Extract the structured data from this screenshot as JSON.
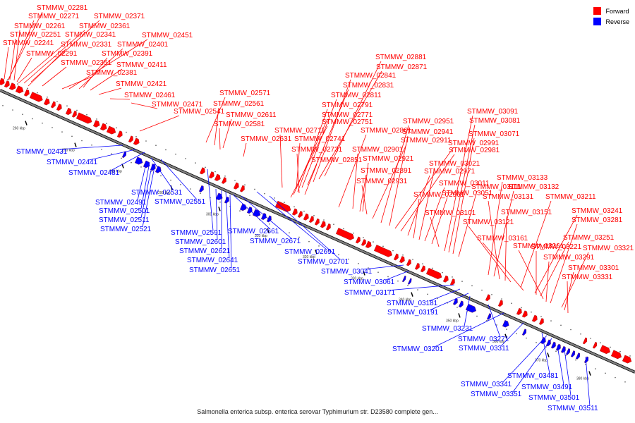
{
  "legend": [
    {
      "label": "Forward",
      "color": "#ff0000"
    },
    {
      "label": "Reverse",
      "color": "#0000ff"
    }
  ],
  "caption": "Salmonella enterica subsp. enterica serovar Typhimurium str. D23580 complete gen...",
  "colors": {
    "forward": "#ff0000",
    "reverse": "#0000ff",
    "backbone": "#808080"
  },
  "ticks": [
    "260 kbp",
    "270 kbp",
    "280 kbp",
    "290 kbp",
    "300 kbp",
    "310 kbp",
    "320 kbp",
    "330 kbp",
    "340 kbp",
    "350 kbp",
    "360 kbp",
    "370 kbp",
    "380 kbp"
  ],
  "forward_labels": [
    "STMMW_02281",
    "STMMW_02271",
    "STMMW_02371",
    "STMMW_02261",
    "STMMW_02361",
    "STMMW_02251",
    "STMMW_02341",
    "STMMW_02451",
    "STMMW_02241",
    "STMMW_02331",
    "STMMW_02401",
    "STMMW_02291",
    "STMMW_02391",
    "STMMW_02351",
    "STMMW_02411",
    "STMMW_02381",
    "STMMW_02421",
    "STMMW_02461",
    "STMMW_02471",
    "STMMW_02571",
    "STMMW_02541",
    "STMMW_02561",
    "STMMW_02611",
    "STMMW_02581",
    "STMMW_02631",
    "STMMW_02881",
    "STMMW_02871",
    "STMMW_02841",
    "STMMW_02831",
    "STMMW_02811",
    "STMMW_02791",
    "STMMW_02771",
    "STMMW_02751",
    "STMMW_02711",
    "STMMW_02741",
    "STMMW_02731",
    "STMMW_02851",
    "STMMW_02861",
    "STMMW_02901",
    "STMMW_02891",
    "STMMW_02931",
    "STMMW_02921",
    "STMMW_02911",
    "STMMW_02951",
    "STMMW_02941",
    "STMMW_02991",
    "STMMW_02981",
    "STMMW_02971",
    "STMMW_02961",
    "STMMW_03021",
    "STMMW_03011",
    "STMMW_03051",
    "STMMW_03101",
    "STMMW_03091",
    "STMMW_03081",
    "STMMW_03071",
    "STMMW_03111",
    "STMMW_03133",
    "STMMW_03132",
    "STMMW_03131",
    "STMMW_03151",
    "STMMW_03121",
    "STMMW_03211",
    "STMMW_03161",
    "STMMW_03241",
    "STMMW_03251",
    "STMMW_03221",
    "STMMW_03261",
    "STMMW_03291",
    "STMMW_03281",
    "STMMW_03321",
    "STMMW_03301",
    "STMMW_03331"
  ],
  "reverse_labels": [
    "STMMW_02431",
    "STMMW_02441",
    "STMMW_02481",
    "STMMW_02531",
    "STMMW_02551",
    "STMMW_02491",
    "STMMW_02501",
    "STMMW_02511",
    "STMMW_02521",
    "STMMW_02591",
    "STMMW_02661",
    "STMMW_02601",
    "STMMW_02671",
    "STMMW_02621",
    "STMMW_02691",
    "STMMW_02641",
    "STMMW_02651",
    "STMMW_02701",
    "STMMW_03041",
    "STMMW_03061",
    "STMMW_03171",
    "STMMW_03181",
    "STMMW_03191",
    "STMMW_03231",
    "STMMW_03271",
    "STMMW_03201",
    "STMMW_03311",
    "STMMW_03481",
    "STMMW_03341",
    "STMMW_03491",
    "STMMW_03351",
    "STMMW_03501",
    "STMMW_03511"
  ]
}
